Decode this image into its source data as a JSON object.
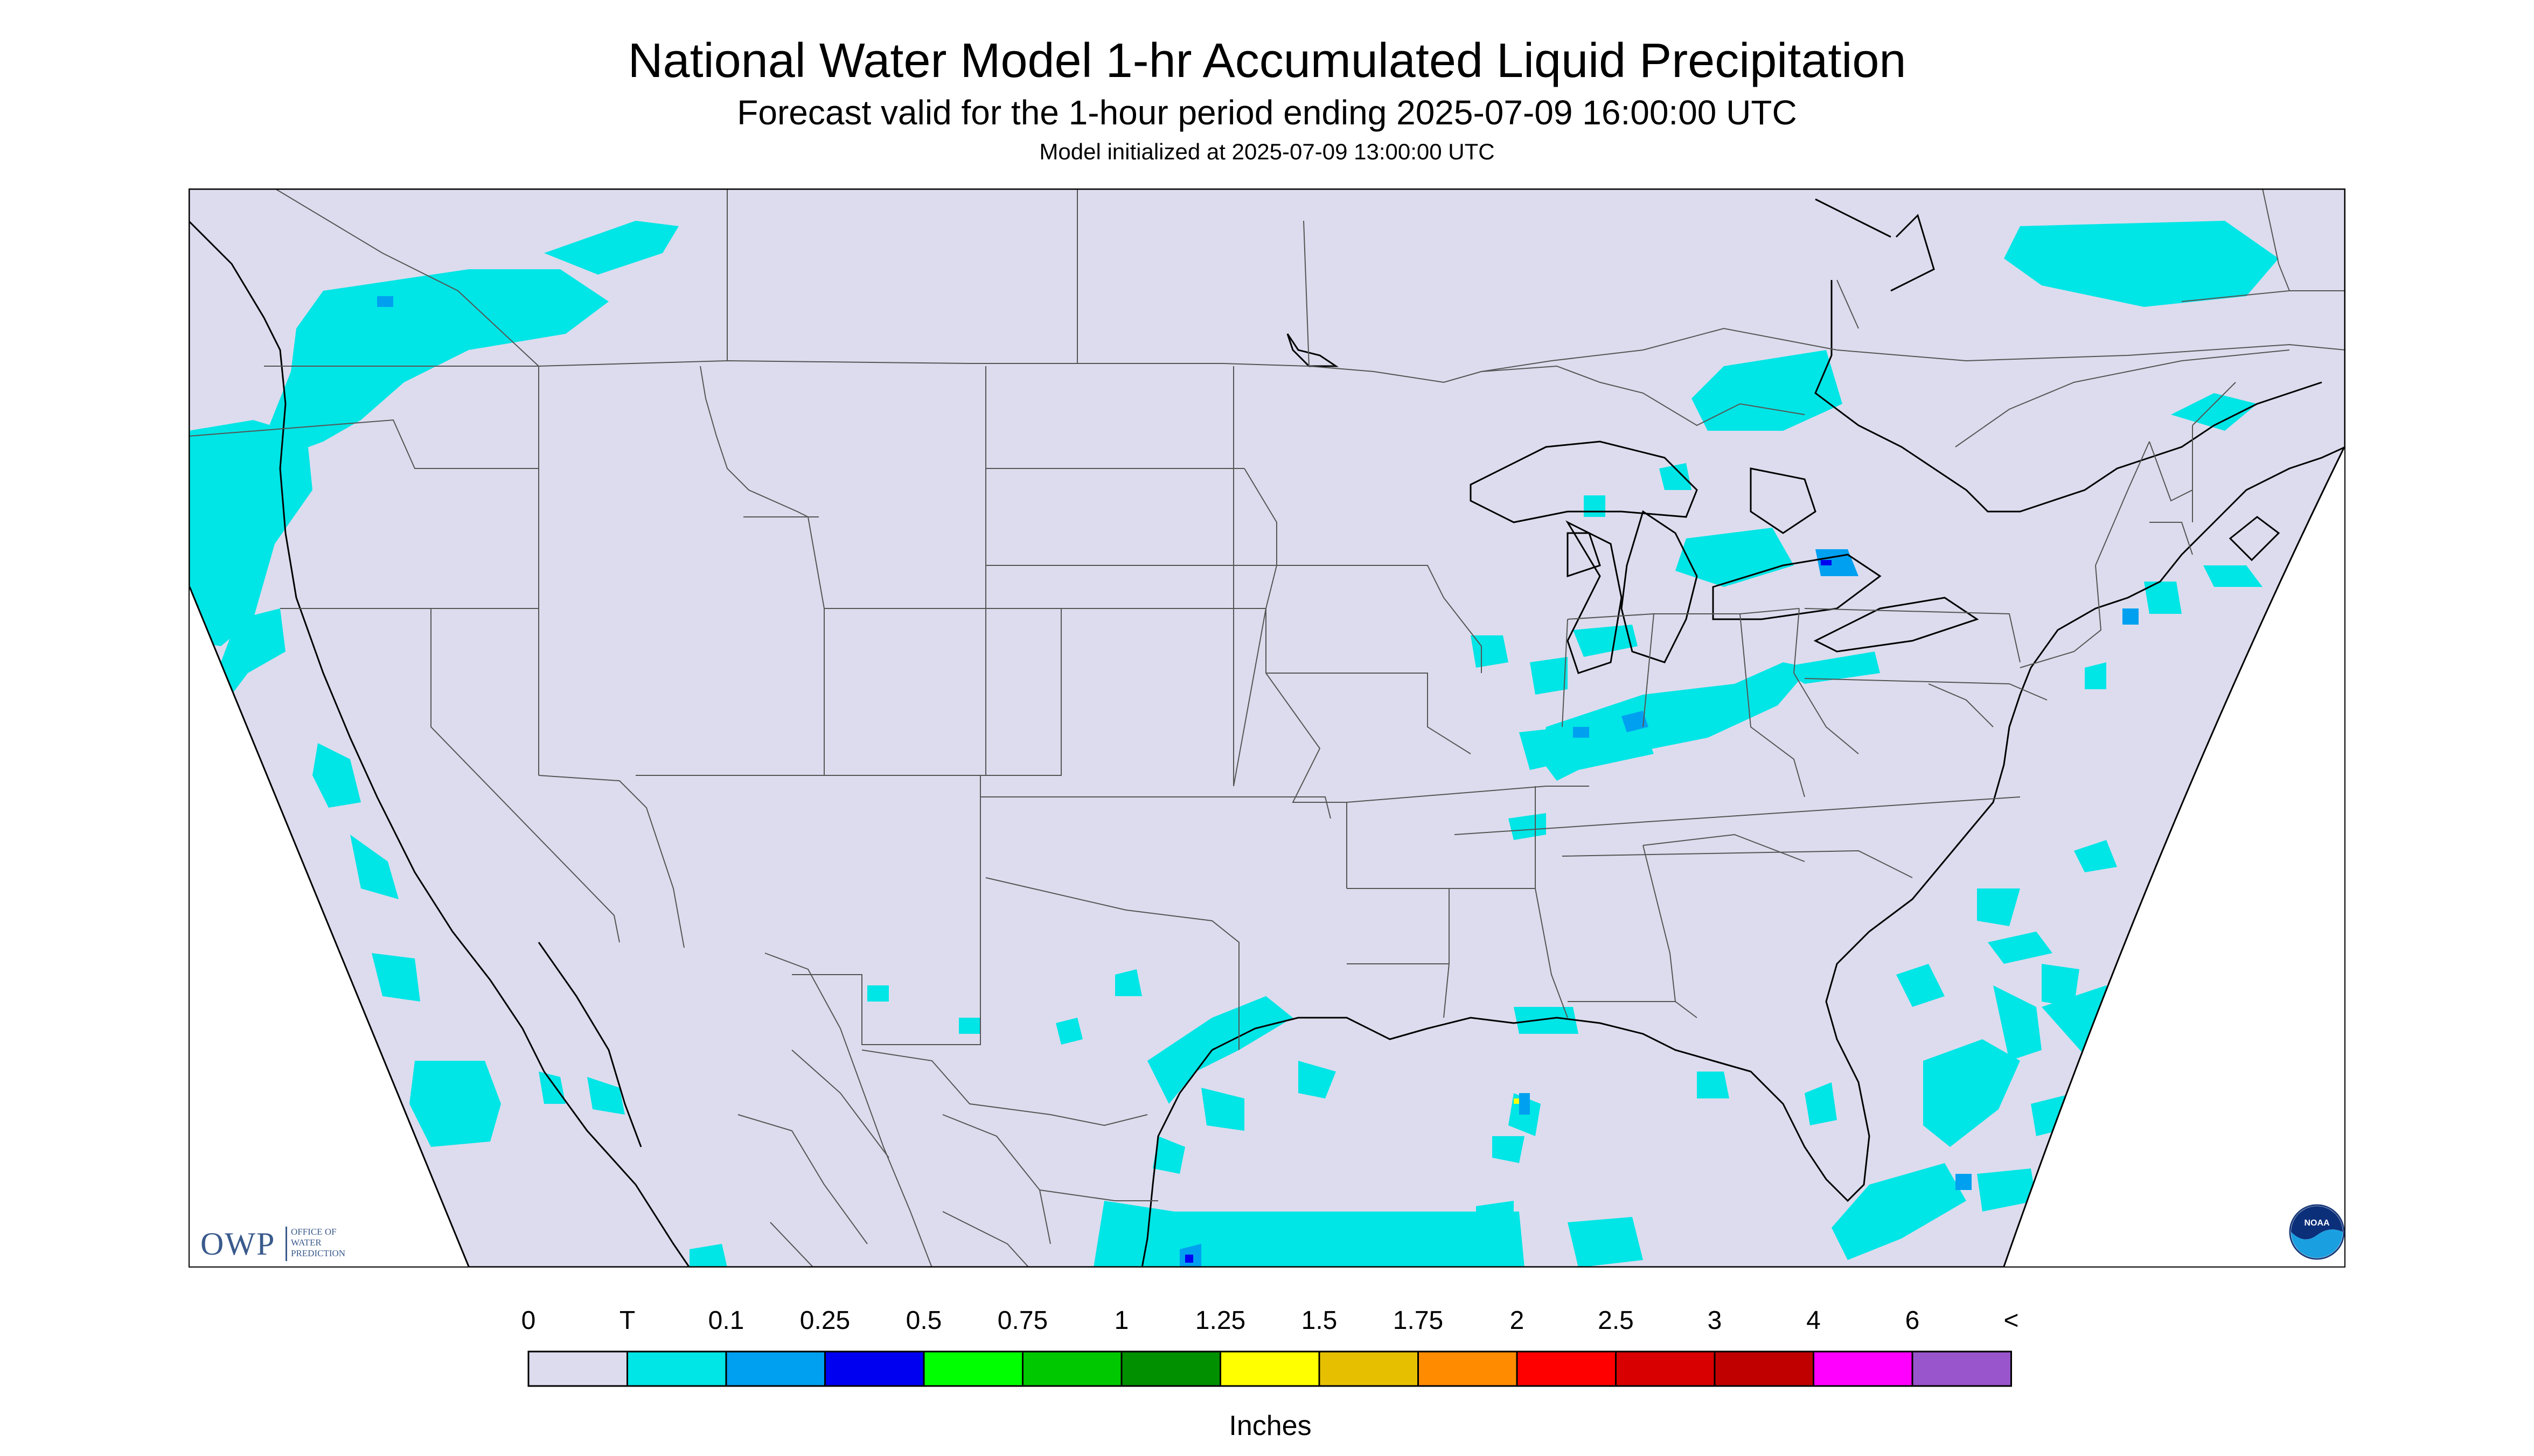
{
  "header": {
    "title": "National Water Model 1-hr Accumulated Liquid Precipitation",
    "subtitle": "Forecast valid for the 1-hour period ending 2025-07-09 16:00:00 UTC",
    "init": "Model initialized at 2025-07-09 13:00:00 UTC"
  },
  "colors": {
    "map_fill": "#dcdcee",
    "outside": "#ffffff",
    "border": "#555555",
    "coast": "#000000"
  },
  "logos": {
    "owp_mark": "OWP",
    "owp_text": [
      "OFFICE OF",
      "WATER",
      "PREDICTION"
    ],
    "noaa_text": "NOAA"
  },
  "legend": {
    "labels": [
      "0",
      "T",
      "0.1",
      "0.25",
      "0.5",
      "0.75",
      "1",
      "1.25",
      "1.5",
      "1.75",
      "2",
      "2.5",
      "3",
      "4",
      "6",
      "<"
    ],
    "colors": [
      "#dcdcee",
      "#00e5e5",
      "#00a0f0",
      "#0000f0",
      "#00ff00",
      "#00c800",
      "#009000",
      "#ffff00",
      "#e6c000",
      "#ff8c00",
      "#ff0000",
      "#d80000",
      "#c00000",
      "#ff00ff",
      "#9955cc"
    ],
    "unit": "Inches"
  }
}
